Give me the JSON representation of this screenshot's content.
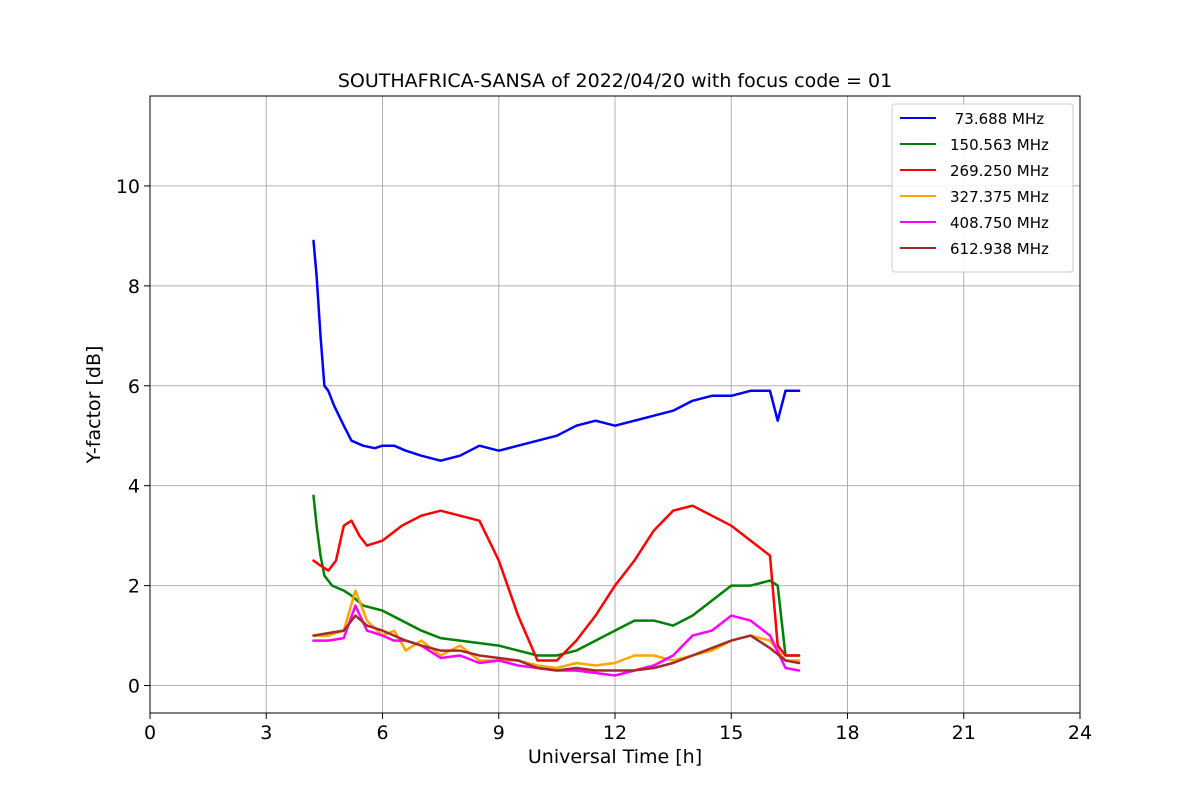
{
  "chart_data": {
    "type": "line",
    "title": "SOUTHAFRICA-SANSA of 2022/04/20 with focus code = 01",
    "xlabel": "Universal Time [h]",
    "ylabel": "Y-factor [dB]",
    "xlim": [
      0,
      24
    ],
    "ylim": [
      -0.55,
      11.8
    ],
    "xticks": [
      0,
      3,
      6,
      9,
      12,
      15,
      18,
      21,
      24
    ],
    "yticks": [
      0,
      2,
      4,
      6,
      8,
      10
    ],
    "grid": true,
    "legend_position": "upper right",
    "series": [
      {
        "name": " 73.688 MHz",
        "color": "#0000ff",
        "x": [
          4.22,
          4.3,
          4.4,
          4.5,
          4.6,
          4.75,
          5.0,
          5.2,
          5.5,
          5.8,
          6.0,
          6.3,
          6.6,
          7.0,
          7.5,
          8.0,
          8.5,
          9.0,
          9.5,
          10.0,
          10.5,
          11.0,
          11.5,
          12.0,
          12.5,
          13.0,
          13.5,
          14.0,
          14.5,
          15.0,
          15.5,
          16.0,
          16.2,
          16.4,
          16.75
        ],
        "y": [
          8.9,
          8.2,
          7.0,
          6.0,
          5.9,
          5.6,
          5.2,
          4.9,
          4.8,
          4.75,
          4.8,
          4.8,
          4.7,
          4.6,
          4.5,
          4.6,
          4.8,
          4.7,
          4.8,
          4.9,
          5.0,
          5.2,
          5.3,
          5.2,
          5.3,
          5.4,
          5.5,
          5.7,
          5.8,
          5.8,
          5.9,
          5.9,
          5.3,
          5.9,
          5.9
        ]
      },
      {
        "name": "150.563 MHz",
        "color": "#008000",
        "x": [
          4.22,
          4.3,
          4.4,
          4.5,
          4.7,
          5.0,
          5.2,
          5.5,
          6.0,
          6.5,
          7.0,
          7.5,
          8.0,
          8.5,
          9.0,
          9.5,
          10.0,
          10.5,
          11.0,
          11.5,
          12.0,
          12.5,
          13.0,
          13.5,
          14.0,
          14.5,
          15.0,
          15.5,
          16.0,
          16.2,
          16.4,
          16.75
        ],
        "y": [
          3.8,
          3.2,
          2.6,
          2.2,
          2.0,
          1.9,
          1.8,
          1.6,
          1.5,
          1.3,
          1.1,
          0.95,
          0.9,
          0.85,
          0.8,
          0.7,
          0.6,
          0.6,
          0.7,
          0.9,
          1.1,
          1.3,
          1.3,
          1.2,
          1.4,
          1.7,
          2.0,
          2.0,
          2.1,
          2.0,
          0.6,
          0.6
        ]
      },
      {
        "name": "269.250 MHz",
        "color": "#ff0000",
        "x": [
          4.22,
          4.4,
          4.6,
          4.8,
          5.0,
          5.2,
          5.4,
          5.6,
          6.0,
          6.5,
          7.0,
          7.5,
          8.0,
          8.5,
          9.0,
          9.5,
          10.0,
          10.5,
          11.0,
          11.5,
          12.0,
          12.5,
          13.0,
          13.5,
          14.0,
          14.5,
          15.0,
          15.5,
          16.0,
          16.2,
          16.4,
          16.75
        ],
        "y": [
          2.5,
          2.4,
          2.3,
          2.5,
          3.2,
          3.3,
          3.0,
          2.8,
          2.9,
          3.2,
          3.4,
          3.5,
          3.4,
          3.3,
          2.5,
          1.4,
          0.5,
          0.5,
          0.9,
          1.4,
          2.0,
          2.5,
          3.1,
          3.5,
          3.6,
          3.4,
          3.2,
          2.9,
          2.6,
          0.8,
          0.6,
          0.6
        ]
      },
      {
        "name": "327.375 MHz",
        "color": "#ffa500",
        "x": [
          4.22,
          4.6,
          5.0,
          5.3,
          5.6,
          6.0,
          6.3,
          6.6,
          7.0,
          7.5,
          8.0,
          8.5,
          9.0,
          9.5,
          10.0,
          10.5,
          11.0,
          11.5,
          12.0,
          12.5,
          13.0,
          13.5,
          14.0,
          14.5,
          15.0,
          15.5,
          16.0,
          16.4,
          16.75
        ],
        "y": [
          1.0,
          1.0,
          1.1,
          1.9,
          1.3,
          1.0,
          1.1,
          0.7,
          0.9,
          0.6,
          0.8,
          0.5,
          0.5,
          0.5,
          0.4,
          0.35,
          0.45,
          0.4,
          0.45,
          0.6,
          0.6,
          0.5,
          0.6,
          0.7,
          0.9,
          1.0,
          0.9,
          0.5,
          0.5
        ]
      },
      {
        "name": "408.750 MHz",
        "color": "#ff00ff",
        "x": [
          4.22,
          4.6,
          5.0,
          5.3,
          5.6,
          6.0,
          6.3,
          6.6,
          7.0,
          7.5,
          8.0,
          8.5,
          9.0,
          9.5,
          10.0,
          10.5,
          11.0,
          11.5,
          12.0,
          12.5,
          13.0,
          13.5,
          14.0,
          14.5,
          15.0,
          15.5,
          16.0,
          16.4,
          16.75
        ],
        "y": [
          0.9,
          0.9,
          0.95,
          1.6,
          1.1,
          1.0,
          0.9,
          0.9,
          0.8,
          0.55,
          0.6,
          0.45,
          0.5,
          0.4,
          0.35,
          0.3,
          0.3,
          0.25,
          0.2,
          0.3,
          0.4,
          0.6,
          1.0,
          1.1,
          1.4,
          1.3,
          1.0,
          0.35,
          0.3
        ]
      },
      {
        "name": "612.938 MHz",
        "color": "#a52a2a",
        "x": [
          4.22,
          4.6,
          5.0,
          5.3,
          5.6,
          6.0,
          6.3,
          6.6,
          7.0,
          7.5,
          8.0,
          8.5,
          9.0,
          9.5,
          10.0,
          10.5,
          11.0,
          11.5,
          12.0,
          12.5,
          13.0,
          13.5,
          14.0,
          14.5,
          15.0,
          15.5,
          16.0,
          16.4,
          16.75
        ],
        "y": [
          1.0,
          1.05,
          1.1,
          1.4,
          1.2,
          1.1,
          1.0,
          0.9,
          0.8,
          0.7,
          0.7,
          0.6,
          0.55,
          0.5,
          0.35,
          0.3,
          0.35,
          0.3,
          0.3,
          0.3,
          0.35,
          0.45,
          0.6,
          0.75,
          0.9,
          1.0,
          0.75,
          0.5,
          0.45
        ]
      }
    ]
  }
}
